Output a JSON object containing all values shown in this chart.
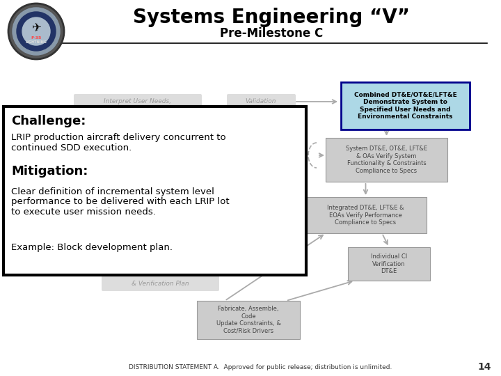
{
  "title": "Systems Engineering “V”",
  "subtitle": "Pre-Milestone C",
  "background_color": "#ffffff",
  "title_fontsize": 20,
  "subtitle_fontsize": 12,
  "challenge_title": "Challenge:",
  "challenge_text": "LRIP production aircraft delivery concurrent to\ncontinued SDD execution.",
  "mitigation_title": "Mitigation:",
  "mitigation_text": "Clear definition of incremental system level\nperformance to be delivered with each LRIP lot\nto execute user mission needs.",
  "example_text": "Example: Block development plan.",
  "box1_text": "Combined DT&E/OT&E/LFT&E\nDemonstrate System to\nSpecified User Needs and\nEnvironmental Constraints",
  "box2_text": "System DT&E, OT&E, LFT&E\n& OAs Verify System\nFunctionality & Constraints\nCompliance to Specs",
  "box3_text": "Integrated DT&E, LFT&E &\nEOAs Verify Performance\nCompliance to Specs",
  "box4_text": "Individual CI\nVerification\nDT&E",
  "box5_text": "Fabricate, Assemble,\nCode\nUpdate Constraints, &\nCost/Risk Drivers",
  "left_label": "Interpret User Needs,",
  "validation_label": "Validation",
  "bottom_label": "& Verification Plan",
  "footer": "DISTRIBUTION STATEMENT A.  Approved for public release; distribution is unlimited.",
  "page_num": "14",
  "box1_bg": "#add8e6",
  "box1_border": "#00008b",
  "box2_bg": "#cccccc",
  "box3_bg": "#cccccc",
  "box4_bg": "#cccccc",
  "box5_bg": "#cccccc",
  "challenge_box_bg": "#ffffff",
  "challenge_box_border": "#000000",
  "gray_label_color": "#999999",
  "arrow_color": "#aaaaaa"
}
